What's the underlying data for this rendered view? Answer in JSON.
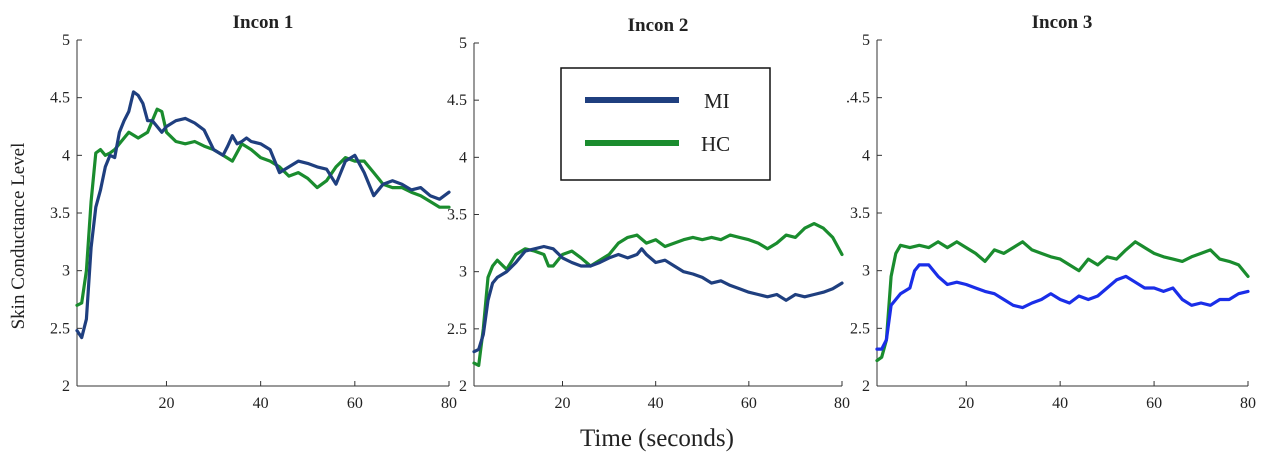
{
  "figure": {
    "xlabel": "Time (seconds)",
    "ylabel": "Skin Conductance Level"
  },
  "legend": {
    "entries": [
      {
        "label": "MI",
        "color": "#1f3f7f"
      },
      {
        "label": "HC",
        "color": "#1a8c2e"
      }
    ]
  },
  "chart_data": [
    {
      "type": "line",
      "title": "Incon 1",
      "xlim": [
        1,
        80
      ],
      "ylim": [
        2,
        5
      ],
      "xticks": [
        20,
        40,
        60,
        80
      ],
      "yticks": [
        2,
        2.5,
        3,
        3.5,
        4,
        4.5,
        5
      ],
      "ytick_labels": [
        "2",
        "2.5",
        "3",
        "3.5",
        "4",
        "4.5",
        "5"
      ],
      "series": [
        {
          "name": "MI",
          "color": "#1f3f7f",
          "x": [
            1,
            2,
            3,
            4,
            5,
            6,
            7,
            8,
            9,
            10,
            11,
            12,
            13,
            14,
            15,
            16,
            17,
            18,
            19,
            20,
            22,
            24,
            26,
            28,
            30,
            32,
            33,
            34,
            35,
            36,
            37,
            38,
            40,
            42,
            44,
            46,
            48,
            50,
            52,
            54,
            56,
            58,
            60,
            62,
            64,
            66,
            68,
            70,
            72,
            74,
            76,
            78,
            80
          ],
          "y": [
            2.48,
            2.42,
            2.58,
            3.2,
            3.55,
            3.7,
            3.9,
            4.0,
            3.98,
            4.2,
            4.3,
            4.38,
            4.55,
            4.52,
            4.45,
            4.3,
            4.3,
            4.25,
            4.2,
            4.25,
            4.3,
            4.32,
            4.28,
            4.22,
            4.05,
            4.0,
            4.08,
            4.17,
            4.1,
            4.12,
            4.15,
            4.12,
            4.1,
            4.05,
            3.85,
            3.9,
            3.95,
            3.93,
            3.9,
            3.88,
            3.75,
            3.95,
            4.0,
            3.85,
            3.65,
            3.75,
            3.78,
            3.75,
            3.7,
            3.72,
            3.65,
            3.62,
            3.68
          ]
        },
        {
          "name": "HC",
          "color": "#1a8c2e",
          "x": [
            1,
            2,
            3,
            4,
            5,
            6,
            7,
            8,
            9,
            10,
            12,
            14,
            16,
            17,
            18,
            19,
            20,
            22,
            24,
            26,
            28,
            30,
            32,
            34,
            36,
            38,
            40,
            42,
            44,
            46,
            48,
            50,
            52,
            54,
            56,
            58,
            60,
            62,
            64,
            66,
            68,
            70,
            72,
            74,
            76,
            78,
            80
          ],
          "y": [
            2.7,
            2.72,
            3.0,
            3.6,
            4.02,
            4.05,
            4.0,
            4.02,
            4.05,
            4.1,
            4.2,
            4.15,
            4.2,
            4.3,
            4.4,
            4.38,
            4.2,
            4.12,
            4.1,
            4.12,
            4.08,
            4.05,
            4.0,
            3.95,
            4.1,
            4.05,
            3.98,
            3.95,
            3.9,
            3.82,
            3.85,
            3.8,
            3.72,
            3.78,
            3.9,
            3.98,
            3.95,
            3.95,
            3.85,
            3.75,
            3.72,
            3.72,
            3.68,
            3.65,
            3.6,
            3.55,
            3.55
          ]
        }
      ]
    },
    {
      "type": "line",
      "title": "Incon 2",
      "xlim": [
        1,
        80
      ],
      "ylim": [
        2,
        5
      ],
      "xticks": [
        20,
        40,
        60,
        80
      ],
      "yticks": [
        2,
        2.5,
        3,
        3.5,
        4,
        4.5,
        5
      ],
      "ytick_labels": [
        "2",
        "2.5",
        "3",
        "3.5",
        "4",
        "4.5",
        "5"
      ],
      "series": [
        {
          "name": "MI",
          "color": "#1f3f7f",
          "x": [
            1,
            2,
            3,
            4,
            5,
            6,
            8,
            10,
            12,
            14,
            16,
            18,
            20,
            22,
            24,
            26,
            28,
            30,
            32,
            34,
            36,
            37,
            38,
            40,
            42,
            44,
            46,
            48,
            50,
            52,
            54,
            56,
            58,
            60,
            62,
            64,
            66,
            68,
            70,
            72,
            74,
            76,
            78,
            80
          ],
          "y": [
            2.3,
            2.32,
            2.45,
            2.75,
            2.9,
            2.95,
            3.0,
            3.08,
            3.18,
            3.2,
            3.22,
            3.2,
            3.12,
            3.08,
            3.05,
            3.05,
            3.08,
            3.12,
            3.15,
            3.12,
            3.15,
            3.2,
            3.15,
            3.08,
            3.1,
            3.05,
            3.0,
            2.98,
            2.95,
            2.9,
            2.92,
            2.88,
            2.85,
            2.82,
            2.8,
            2.78,
            2.8,
            2.75,
            2.8,
            2.78,
            2.8,
            2.82,
            2.85,
            2.9
          ]
        },
        {
          "name": "HC",
          "color": "#1a8c2e",
          "x": [
            1,
            2,
            3,
            4,
            5,
            6,
            8,
            10,
            12,
            14,
            16,
            17,
            18,
            20,
            22,
            24,
            26,
            28,
            30,
            32,
            34,
            36,
            38,
            40,
            42,
            44,
            46,
            48,
            50,
            52,
            54,
            56,
            58,
            60,
            62,
            64,
            66,
            68,
            70,
            72,
            74,
            76,
            78,
            80
          ],
          "y": [
            2.2,
            2.18,
            2.5,
            2.95,
            3.05,
            3.1,
            3.02,
            3.15,
            3.2,
            3.18,
            3.15,
            3.05,
            3.05,
            3.15,
            3.18,
            3.12,
            3.05,
            3.1,
            3.15,
            3.25,
            3.3,
            3.32,
            3.25,
            3.28,
            3.22,
            3.25,
            3.28,
            3.3,
            3.28,
            3.3,
            3.28,
            3.32,
            3.3,
            3.28,
            3.25,
            3.2,
            3.25,
            3.32,
            3.3,
            3.38,
            3.42,
            3.38,
            3.3,
            3.15
          ]
        }
      ]
    },
    {
      "type": "line",
      "title": "Incon 3",
      "xlim": [
        1,
        80
      ],
      "ylim": [
        2,
        5
      ],
      "xticks": [
        20,
        40,
        60,
        80
      ],
      "yticks": [
        2,
        2.5,
        3,
        3.5,
        4,
        4.5,
        5
      ],
      "ytick_labels": [
        "2",
        "2.5",
        "3",
        "3.5",
        "4",
        ".4.5",
        "5"
      ],
      "series": [
        {
          "name": "MI",
          "color": "#1a2ee8",
          "x": [
            1,
            2,
            3,
            4,
            5,
            6,
            8,
            9,
            10,
            11,
            12,
            14,
            16,
            18,
            20,
            22,
            24,
            26,
            28,
            30,
            32,
            34,
            36,
            38,
            40,
            42,
            44,
            46,
            48,
            50,
            52,
            54,
            56,
            58,
            60,
            62,
            64,
            66,
            68,
            70,
            72,
            74,
            76,
            78,
            80
          ],
          "y": [
            2.32,
            2.32,
            2.4,
            2.7,
            2.75,
            2.8,
            2.85,
            3.0,
            3.05,
            3.05,
            3.05,
            2.95,
            2.88,
            2.9,
            2.88,
            2.85,
            2.82,
            2.8,
            2.75,
            2.7,
            2.68,
            2.72,
            2.75,
            2.8,
            2.75,
            2.72,
            2.78,
            2.75,
            2.78,
            2.85,
            2.92,
            2.95,
            2.9,
            2.85,
            2.85,
            2.82,
            2.85,
            2.75,
            2.7,
            2.72,
            2.7,
            2.75,
            2.75,
            2.8,
            2.82
          ]
        },
        {
          "name": "HC",
          "color": "#1a8c2e",
          "x": [
            1,
            2,
            3,
            4,
            5,
            6,
            8,
            10,
            12,
            14,
            16,
            18,
            20,
            22,
            24,
            26,
            28,
            30,
            32,
            34,
            36,
            38,
            40,
            42,
            44,
            46,
            48,
            50,
            52,
            54,
            56,
            58,
            60,
            62,
            64,
            66,
            68,
            70,
            72,
            74,
            76,
            78,
            80
          ],
          "y": [
            2.22,
            2.25,
            2.4,
            2.95,
            3.15,
            3.22,
            3.2,
            3.22,
            3.2,
            3.25,
            3.2,
            3.25,
            3.2,
            3.15,
            3.08,
            3.18,
            3.15,
            3.2,
            3.25,
            3.18,
            3.15,
            3.12,
            3.1,
            3.05,
            3.0,
            3.1,
            3.05,
            3.12,
            3.1,
            3.18,
            3.25,
            3.2,
            3.15,
            3.12,
            3.1,
            3.08,
            3.12,
            3.15,
            3.18,
            3.1,
            3.08,
            3.05,
            2.95
          ]
        }
      ]
    }
  ]
}
